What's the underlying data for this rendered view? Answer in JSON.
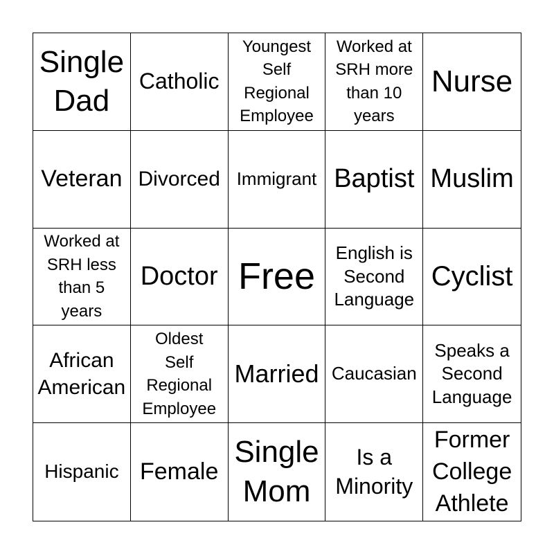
{
  "cells": [
    "Single\nDad",
    "Catholic",
    "Youngest\nSelf\nRegional\nEmployee",
    "Worked at\nSRH more\nthan 10\nyears",
    "Nurse",
    "Veteran",
    "Divorced",
    "Immigrant",
    "Baptist",
    "Muslim",
    "Worked at\nSRH less\nthan 5\nyears",
    "Doctor",
    "Free",
    "English is\nSecond\nLanguage",
    "Cyclist",
    "African\nAmerican",
    "Oldest\nSelf\nRegional\nEmployee",
    "Married",
    "Caucasian",
    "Speaks a\nSecond\nLanguage",
    "Hispanic",
    "Female",
    "Single\nMom",
    "Is a\nMinority",
    "Former\nCollege\nAthlete"
  ]
}
